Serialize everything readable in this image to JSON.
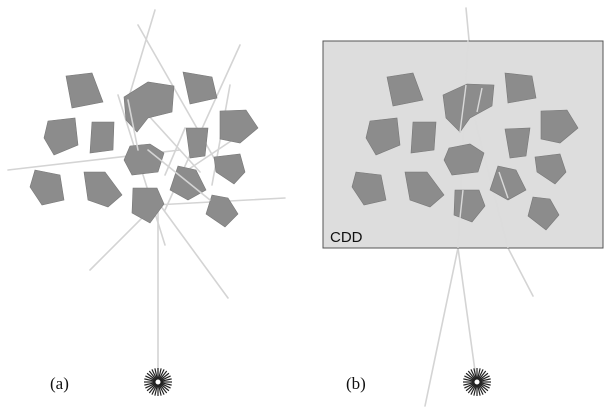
{
  "panels": [
    {
      "id": "a",
      "caption": "(a)"
    },
    {
      "id": "b",
      "caption": "(b)"
    }
  ],
  "detector": {
    "label": "CDD"
  },
  "colors": {
    "grain": "#8c8c8c",
    "ray": "#d4d4d4",
    "detector_fill": "#dddddd",
    "detector_stroke": "#555555",
    "source": "#222222"
  },
  "icons": {
    "source": "starburst-source-icon"
  }
}
